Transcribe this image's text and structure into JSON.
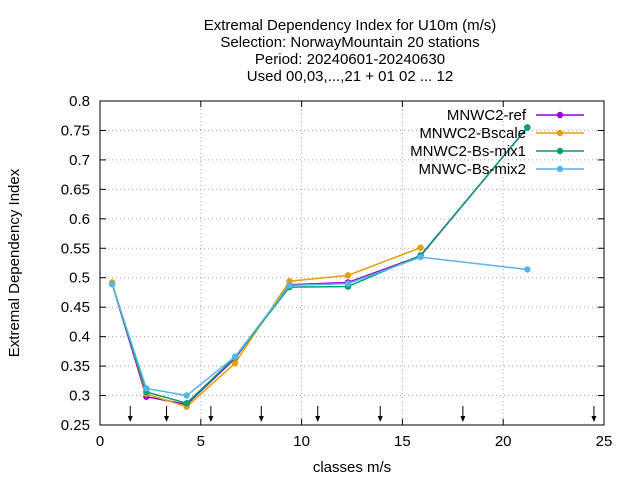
{
  "chart_data": {
    "type": "line",
    "title_lines": [
      "Extremal Dependency Index  for U10m (m/s)",
      "Selection: NorwayMountain     20 stations",
      "Period: 20240601-20240630",
      "Used 00,03,...,21 + 01 02 ... 12"
    ],
    "xlabel": "classes m/s",
    "ylabel": "Extremal Dependency Index",
    "xlim": [
      0,
      25
    ],
    "ylim": [
      0.25,
      0.8
    ],
    "xticks": [
      0,
      5,
      10,
      15,
      20,
      25
    ],
    "yticks": [
      0.25,
      0.3,
      0.35,
      0.4,
      0.45,
      0.5,
      0.55,
      0.6,
      0.65,
      0.7,
      0.75,
      0.8
    ],
    "xtick_labels": [
      "0",
      "5",
      "10",
      "15",
      "20",
      "25"
    ],
    "ytick_labels": [
      "0.25",
      "0.3",
      "0.35",
      "0.4",
      "0.45",
      "0.5",
      "0.55",
      "0.6",
      "0.65",
      "0.7",
      "0.75",
      "0.8"
    ],
    "grid": true,
    "legend_position": "top-right",
    "class_boundaries": [
      1.5,
      3.3,
      5.5,
      8.0,
      10.8,
      13.9,
      18.0,
      24.5
    ],
    "series": [
      {
        "name": "MNWC2-ref",
        "color": "#9400d3",
        "x": [
          0.6,
          2.3,
          4.3,
          6.7,
          9.4,
          12.3,
          15.9,
          21.2
        ],
        "y": [
          0.49,
          0.298,
          0.285,
          0.363,
          0.488,
          0.492,
          0.537,
          0.755
        ]
      },
      {
        "name": "MNWC2-Bscale",
        "color": "#e69f00",
        "x": [
          0.6,
          2.3,
          4.3,
          6.7,
          9.4,
          12.3,
          15.9
        ],
        "y": [
          0.492,
          0.303,
          0.281,
          0.355,
          0.494,
          0.504,
          0.551
        ]
      },
      {
        "name": "MNWC2-Bs-mix1",
        "color": "#009e73",
        "x": [
          0.6,
          2.3,
          4.3,
          6.7,
          9.4,
          12.3,
          15.9,
          21.2
        ],
        "y": [
          0.489,
          0.306,
          0.287,
          0.365,
          0.484,
          0.485,
          0.538,
          0.755
        ]
      },
      {
        "name": "MNWC-Bs-mix2",
        "color": "#56b4e9",
        "x": [
          0.6,
          2.3,
          4.3,
          6.7,
          9.4,
          12.3,
          15.9,
          21.2
        ],
        "y": [
          0.489,
          0.312,
          0.3,
          0.366,
          0.487,
          0.49,
          0.535,
          0.514
        ]
      }
    ]
  }
}
